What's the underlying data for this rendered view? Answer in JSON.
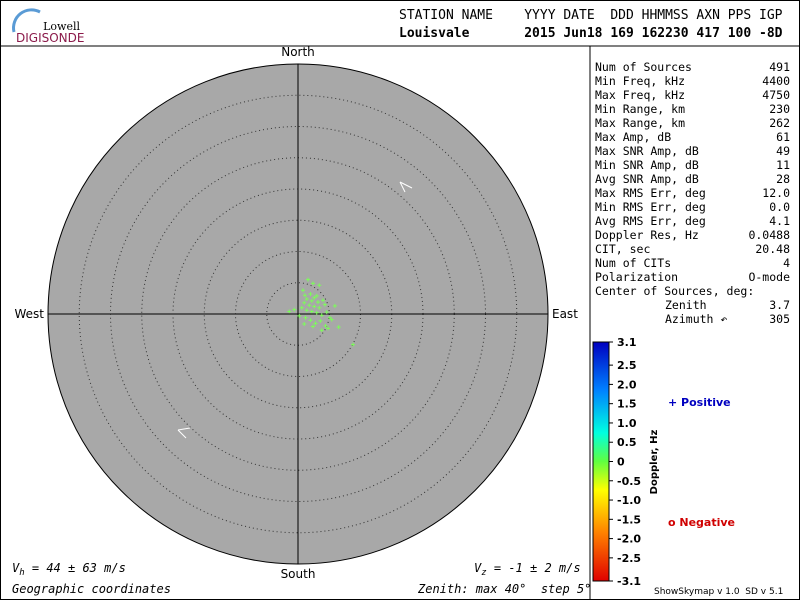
{
  "logo": {
    "top": "Lowell",
    "bottom": "DIGISONDE"
  },
  "header": {
    "line1": "STATION NAME    YYYY DATE  DDD HHMMSS AXN PPS IGP",
    "line2": "Louisvale       2015 Jun18 169 162230 417 100 -8D"
  },
  "compass": {
    "north": "North",
    "south": "South",
    "east": "East",
    "west": "West"
  },
  "stats": [
    [
      "Num of Sources",
      "491"
    ],
    [
      "Min Freq, kHz",
      "4400"
    ],
    [
      "Max Freq, kHz",
      "4750"
    ],
    [
      "Min Range, km",
      "230"
    ],
    [
      "Max Range, km",
      "262"
    ],
    [
      "Max Amp, dB",
      "61"
    ],
    [
      "Max SNR Amp, dB",
      "49"
    ],
    [
      "Min SNR Amp, dB",
      "11"
    ],
    [
      "Avg SNR Amp, dB",
      "28"
    ],
    [
      "Max RMS Err, deg",
      "12.0"
    ],
    [
      "Min RMS Err, deg",
      "0.0"
    ],
    [
      "Avg RMS Err, deg",
      "4.1"
    ],
    [
      "Doppler Res, Hz",
      "0.0488"
    ],
    [
      "CIT, sec",
      "20.48"
    ],
    [
      "Num of CITs",
      "4"
    ],
    [
      "Polarization",
      "O-mode"
    ],
    [
      "Center of Sources, deg:",
      ""
    ],
    [
      "Zenith",
      "3.7"
    ],
    [
      "Azimuth ↶",
      "305"
    ]
  ],
  "colorbar": {
    "label": "Doppler, Hz",
    "lim": [
      -3.1,
      3.1
    ],
    "ticks": [
      3.1,
      2.5,
      {
        "value": 2,
        "label": "2.0"
      },
      1.5,
      {
        "value": 1,
        "label": "1.0"
      },
      0.5,
      0,
      -0.5,
      {
        "value": -1,
        "label": "-1.0"
      },
      -1.5,
      {
        "value": -2,
        "label": "-2.0"
      },
      -2.5,
      -3.1
    ]
  },
  "legend": {
    "positive": "+ Positive",
    "negative": "o Negative"
  },
  "sources": {
    "color": "#7cfc5a",
    "east": [
      0.8,
      1.6,
      2.4,
      3.4,
      1.1,
      2.0,
      2.6,
      3.0,
      1.4,
      2.2,
      3.2,
      4.0,
      1.0,
      1.8,
      2.6,
      3.4,
      4.3,
      5.9,
      0.6,
      1.4,
      2.2,
      3.0,
      3.8,
      4.6,
      -0.6,
      -1.4,
      0.2,
      1.2,
      2.0,
      2.8,
      3.6,
      5.1,
      4.4,
      4.8,
      3.8,
      2.4,
      6.5,
      8.8,
      1.0,
      5.4
    ],
    "north": [
      3.8,
      5.5,
      4.9,
      4.6,
      3.0,
      3.2,
      2.6,
      2.9,
      2.4,
      2.1,
      1.9,
      2.2,
      1.8,
      1.4,
      1.2,
      1.0,
      1.5,
      1.3,
      1.0,
      0.6,
      0.4,
      0.2,
      -0.2,
      0.3,
      0.7,
      0.4,
      -0.3,
      -0.6,
      -1.0,
      -1.5,
      -1.1,
      -0.6,
      -1.9,
      -2.3,
      -2.6,
      -2.0,
      -2.1,
      -4.9,
      -1.6,
      -0.9
    ]
  },
  "footer": {
    "vh_v": "V",
    "vh_sub": "h",
    "vh_rest": " = 44 ± 63 m/s",
    "vz_v": "V",
    "vz_sub": "z",
    "vz_rest": " = -1 ± 2 m/s",
    "coords": "Geographic coordinates",
    "zenith": "Zenith: max 40°  step 5°",
    "version": "ShowSkymap v 1.0  SD v 5.1"
  }
}
